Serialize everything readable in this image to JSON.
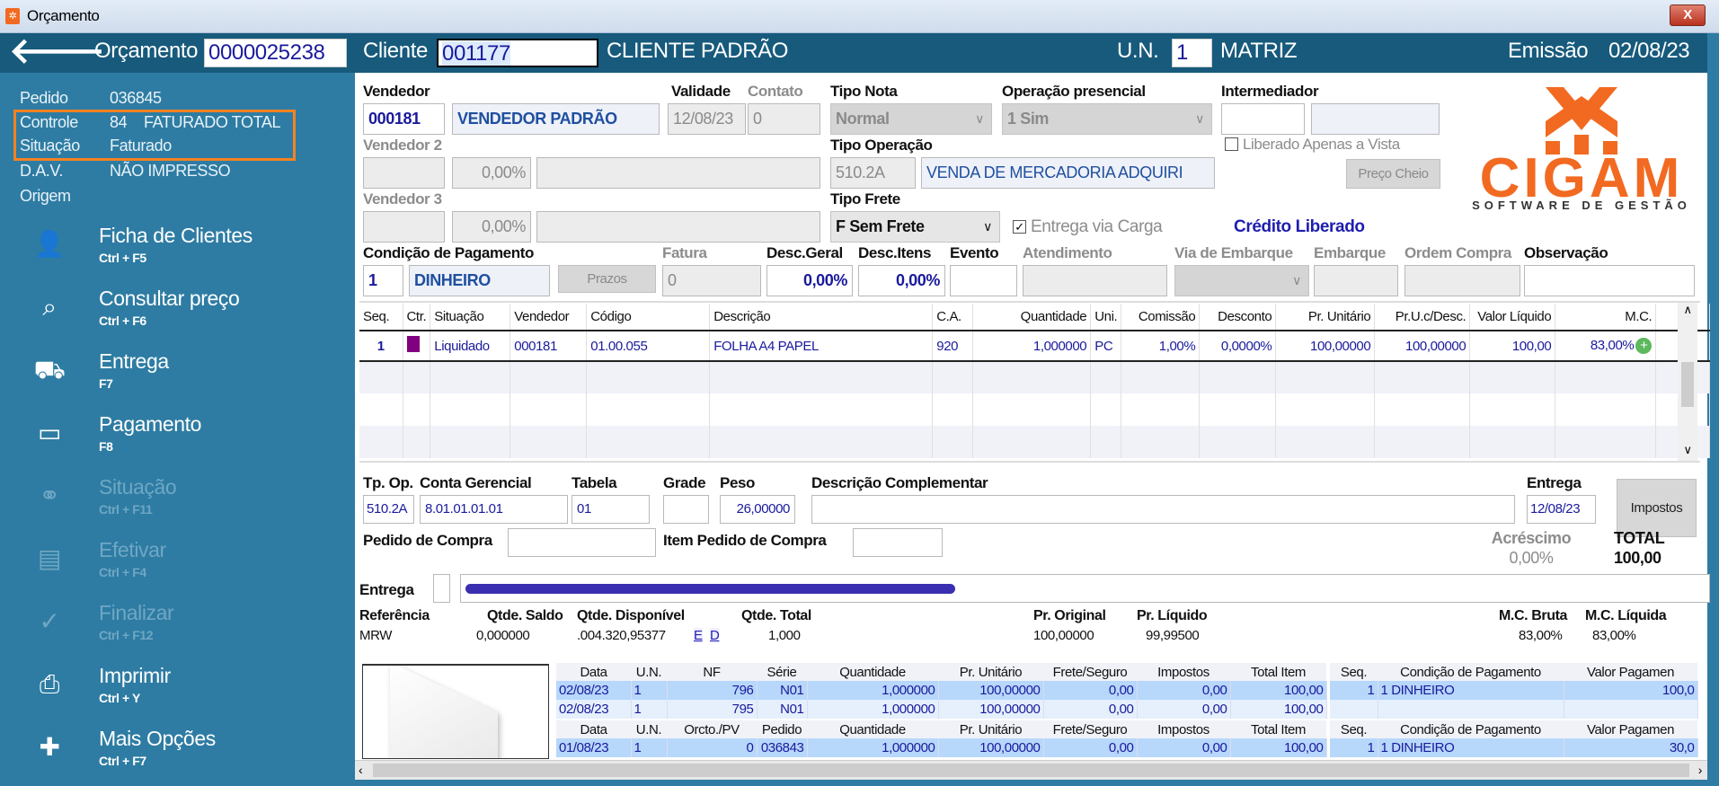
{
  "window": {
    "title": "Orçamento",
    "close": "X"
  },
  "header": {
    "orcamento_label": "Orçamento",
    "orcamento": "0000025238",
    "cliente_label": "Cliente",
    "cliente_code": "001177",
    "cliente_name": "CLIENTE PADRÃO",
    "un_label": "U.N.",
    "un": "1",
    "un_name": "MATRIZ",
    "emissao_label": "Emissão",
    "emissao": "02/08/23"
  },
  "info": {
    "pedido_label": "Pedido",
    "pedido": "036845",
    "controle_label": "Controle",
    "controle": "84",
    "controle_desc": "FATURADO TOTAL",
    "situacao_label": "Situação",
    "situacao": "Faturado",
    "dav_label": "D.A.V.",
    "dav": "NÃO IMPRESSO",
    "origem_label": "Origem",
    "highlight_color": "#f58220"
  },
  "menu": [
    {
      "label": "Ficha de Clientes",
      "shortcut": "Ctrl + F5",
      "icon": "user-icon",
      "enabled": true
    },
    {
      "label": "Consultar preço",
      "shortcut": "Ctrl + F6",
      "icon": "price-search-icon",
      "enabled": true
    },
    {
      "label": "Entrega",
      "shortcut": "F7",
      "icon": "truck-icon",
      "enabled": true
    },
    {
      "label": "Pagamento",
      "shortcut": "F8",
      "icon": "money-icon",
      "enabled": true
    },
    {
      "label": "Situação",
      "shortcut": "Ctrl + F11",
      "icon": "link-icon",
      "enabled": false
    },
    {
      "label": "Efetivar",
      "shortcut": "Ctrl + F4",
      "icon": "document-check-icon",
      "enabled": false
    },
    {
      "label": "Finalizar",
      "shortcut": "Ctrl + F12",
      "icon": "check-icon",
      "enabled": false
    },
    {
      "label": "Imprimir",
      "shortcut": "Ctrl + Y",
      "icon": "printer-icon",
      "enabled": true
    },
    {
      "label": "Mais Opções",
      "shortcut": "Ctrl + F7",
      "icon": "plus-icon",
      "enabled": true
    }
  ],
  "form": {
    "vendedor_label": "Vendedor",
    "vendedor": "000181",
    "vendedor_name": "VENDEDOR PADRÃO",
    "validade_label": "Validade",
    "validade": "12/08/23",
    "contato_label": "Contato",
    "contato": "0",
    "tipo_nota_label": "Tipo Nota",
    "tipo_nota": "Normal",
    "op_presencial_label": "Operação presencial",
    "op_presencial": "1 Sim",
    "intermediador_label": "Intermediador",
    "vendedor2_label": "Vendedor 2",
    "vendedor2_pct": "0,00%",
    "tipo_operacao_label": "Tipo Operação",
    "tipo_operacao": "510.2A",
    "tipo_operacao_desc": "VENDA DE MERCADORIA ADQUIRI",
    "liberado_vista_label": "Liberado Apenas a Vista",
    "liberado_vista": false,
    "preco_cheio": "Preço Cheio",
    "vendedor3_label": "Vendedor 3",
    "vendedor3_pct": "0,00%",
    "tipo_frete_label": "Tipo Frete",
    "tipo_frete": "F Sem Frete",
    "entrega_carga_label": "Entrega via Carga",
    "entrega_carga": true,
    "credito": "Crédito Liberado",
    "cond_pag_label": "Condição de Pagamento",
    "cond_pag": "1",
    "cond_pag_name": "DINHEIRO",
    "prazos": "Prazos",
    "fatura_label": "Fatura",
    "fatura": "0",
    "desc_geral_label": "Desc.Geral",
    "desc_geral": "0,00%",
    "desc_itens_label": "Desc.Itens",
    "desc_itens": "0,00%",
    "evento_label": "Evento",
    "atendimento_label": "Atendimento",
    "via_embarque_label": "Via de Embarque",
    "embarque_label": "Embarque",
    "ordem_compra_label": "Ordem Compra",
    "observacao_label": "Observação"
  },
  "logo": {
    "name": "CIGAM",
    "tagline": "SOFTWARE DE GESTÃO",
    "color": "#f26a21"
  },
  "grid": {
    "columns": [
      "Seq.",
      "Ctr.",
      "Situação",
      "Vendedor",
      "Código",
      "Descrição",
      "C.A.",
      "Quantidade",
      "Uni.",
      "Comissão",
      "Desconto",
      "Pr. Unitário",
      "Pr.U.c/Desc.",
      "Valor Líquido",
      "M.C.",
      ""
    ],
    "rows": [
      [
        "1",
        "",
        "Liquidado",
        "000181",
        "01.00.055",
        "FOLHA A4 PAPEL",
        "920",
        "1,000000",
        "PC",
        "1,00%",
        "0,0000%",
        "100,00000",
        "100,00000",
        "100,00",
        "83,00%",
        ""
      ]
    ],
    "ctr_color": "#800080"
  },
  "detail": {
    "tp_op_label": "Tp. Op.",
    "tp_op": "510.2A",
    "conta_label": "Conta Gerencial",
    "conta": "8.01.01.01.01",
    "tabela_label": "Tabela",
    "tabela": "01",
    "grade_label": "Grade",
    "peso_label": "Peso",
    "peso": "26,00000",
    "desc_compl_label": "Descrição Complementar",
    "entrega_label": "Entrega",
    "entrega": "12/08/23",
    "impostos": "Impostos",
    "pedido_compra_label": "Pedido de Compra",
    "item_pedido_label": "Item Pedido de Compra",
    "acrescimo_label": "Acréscimo",
    "acrescimo": "0,00%",
    "total_label": "TOTAL",
    "total": "100,00",
    "entrega_addr_label": "Entrega"
  },
  "summary": {
    "labels": [
      "Referência",
      "Qtde. Saldo",
      "Qtde. Disponível",
      "Qtde. Total",
      "Pr. Original",
      "Pr. Líquido",
      "M.C. Bruta",
      "M.C. Líquida"
    ],
    "values": [
      "MRW",
      "0,000000",
      ".004.320,95377",
      "1,000",
      "100,00000",
      "99,99500",
      "83,00%",
      "83,00%"
    ],
    "links": [
      "E",
      "D"
    ]
  },
  "nf_table": {
    "columns": [
      "Data",
      "U.N.",
      "NF",
      "Série",
      "Quantidade",
      "Pr. Unitário",
      "Frete/Seguro",
      "Impostos",
      "Total Item"
    ],
    "rows": [
      [
        "02/08/23",
        "1",
        "796",
        "N01",
        "1,000000",
        "100,00000",
        "0,00",
        "0,00",
        "100,00"
      ],
      [
        "02/08/23",
        "1",
        "795",
        "N01",
        "1,000000",
        "100,00000",
        "0,00",
        "0,00",
        "100,00"
      ]
    ]
  },
  "nf_pay": {
    "columns": [
      "Seq.",
      "Condição de Pagamento",
      "Valor Pagamen"
    ],
    "rows": [
      [
        "1",
        "1   DINHEIRO",
        "100,0"
      ],
      [
        "",
        "",
        ""
      ]
    ]
  },
  "pv_table": {
    "columns": [
      "Data",
      "U.N.",
      "Orcto./PV",
      "Pedido",
      "Quantidade",
      "Pr. Unitário",
      "Frete/Seguro",
      "Impostos",
      "Total Item"
    ],
    "rows": [
      [
        "01/08/23",
        "1",
        "0",
        "036843",
        "1,000000",
        "100,00000",
        "0,00",
        "0,00",
        "100,00"
      ]
    ]
  },
  "pv_pay": {
    "columns": [
      "Seq.",
      "Condição de Pagamento",
      "Valor Pagamen"
    ],
    "rows": [
      [
        "1",
        "1   DINHEIRO",
        "30,0"
      ]
    ]
  }
}
